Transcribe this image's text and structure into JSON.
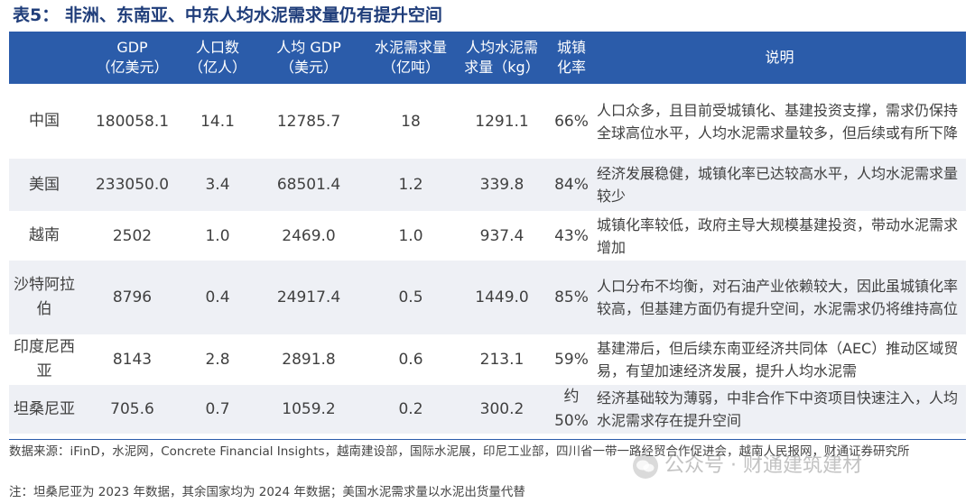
{
  "title": "表5： 非洲、东南亚、中东人均水泥需求量仍有提升空间",
  "table": {
    "headers": [
      {
        "l1": "",
        "l2": ""
      },
      {
        "l1": "GDP",
        "l2": "（亿美元）"
      },
      {
        "l1": "人口数",
        "l2": "（亿人）"
      },
      {
        "l1": "人均 GDP",
        "l2": "（美元）"
      },
      {
        "l1": "水泥需求量",
        "l2": "（亿吨）"
      },
      {
        "l1": "人均水泥需",
        "l2": "求量（kg）"
      },
      {
        "l1": "城镇",
        "l2": "化率"
      },
      {
        "l1": "说明",
        "l2": ""
      }
    ],
    "rows": [
      {
        "country": "中国",
        "gdp": "180058.1",
        "pop": "14.1",
        "gdp_pc": "12785.7",
        "cement": "18",
        "cement_pc": "1291.1",
        "urban": "66%",
        "note": "人口众多，且目前受城镇化、基建投资支撑，需求仍保持全球高位水平，人均水泥需求量较多，但后续或有所下降"
      },
      {
        "country": "美国",
        "gdp": "233050.0",
        "pop": "3.4",
        "gdp_pc": "68501.4",
        "cement": "1.2",
        "cement_pc": "339.8",
        "urban": "84%",
        "note": "经济发展稳健，城镇化率已达较高水平，人均水泥需求量较少"
      },
      {
        "country": "越南",
        "gdp": "2502",
        "pop": "1.0",
        "gdp_pc": "2469.0",
        "cement": "1.0",
        "cement_pc": "937.4",
        "urban": "43%",
        "note": "城镇化率较低，政府主导大规模基建投资，带动水泥需求增加"
      },
      {
        "country": "沙特阿拉伯",
        "gdp": "8796",
        "pop": "0.4",
        "gdp_pc": "24917.4",
        "cement": "0.5",
        "cement_pc": "1449.0",
        "urban": "85%",
        "note": "人口分布不均衡，对石油产业依赖较大，因此虽城镇化率较高，但基建方面仍有提升空间，水泥需求仍将维持高位"
      },
      {
        "country": "印度尼西亚",
        "gdp": "8143",
        "pop": "2.8",
        "gdp_pc": "2891.8",
        "cement": "0.6",
        "cement_pc": "213.1",
        "urban": "59%",
        "note": "基建滞后，但后续东南亚经济共同体（AEC）推动区域贸易，有望加速经济发展，提升人均水泥需"
      },
      {
        "country": "坦桑尼亚",
        "gdp": "705.6",
        "pop": "0.7",
        "gdp_pc": "1059.2",
        "cement": "0.2",
        "cement_pc": "300.2",
        "urban": "约 50%",
        "note": "经济基础较为薄弱，中非合作下中资项目快速注入，人均水泥需求存在提升空间"
      }
    ]
  },
  "source": "数据来源：iFinD，水泥网，Concrete Financial Insights，越南建设部，国际水泥展，印尼工业部，四川省一带一路经贸合作促进会，越南人民报网，财通证券研究所",
  "footnote": "注：坦桑尼亚为 2023 年数据，其余国家均为 2024 年数据；美国水泥需求量以水泥出货量代替",
  "watermark": "公众号 · 财通建筑建材",
  "colors": {
    "header_bg": "#2b5caa",
    "title": "#1f3d7a",
    "stripe": "#eef0f5"
  }
}
